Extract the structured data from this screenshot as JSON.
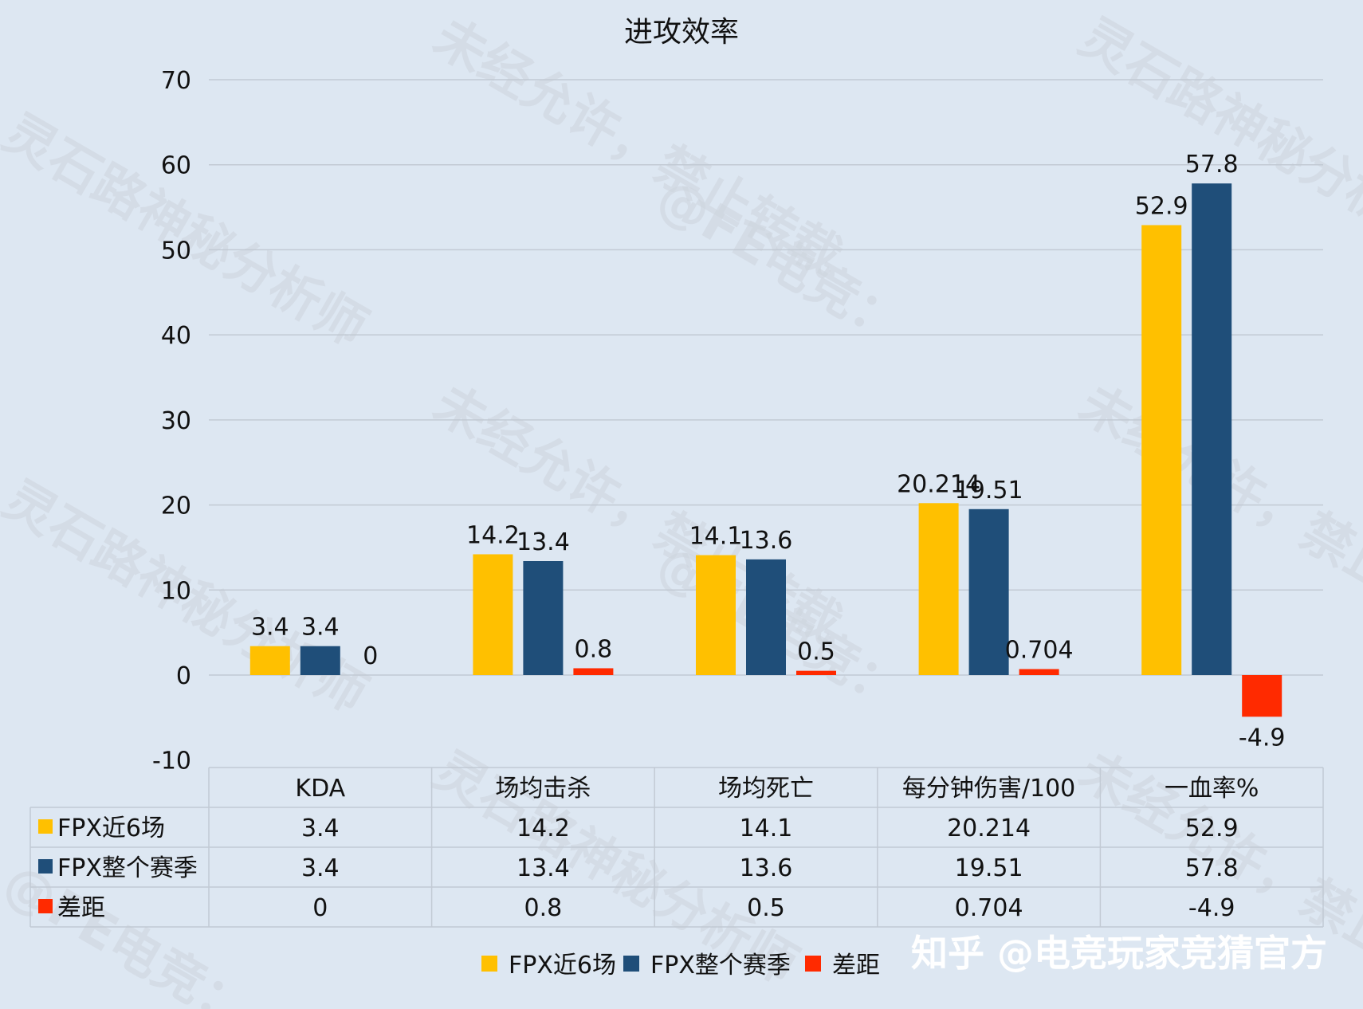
{
  "chart_data": {
    "type": "bar",
    "title": "进攻效率",
    "categories": [
      "KDA",
      "场均击杀",
      "场均死亡",
      "每分钟伤害/100",
      "一血率%"
    ],
    "series": [
      {
        "name": "FPX近6场",
        "color": "#ffc000",
        "values": [
          3.4,
          14.2,
          14.1,
          20.214,
          52.9
        ],
        "labels": [
          "3.4",
          "14.2",
          "14.1",
          "20.214",
          "52.9"
        ]
      },
      {
        "name": "FPX整个赛季",
        "color": "#1f4e79",
        "values": [
          3.4,
          13.4,
          13.6,
          19.51,
          57.8
        ],
        "labels": [
          "3.4",
          "13.4",
          "13.6",
          "19.51",
          "57.8"
        ]
      },
      {
        "name": "差距",
        "color": "#ff2a00",
        "values": [
          0,
          0.8,
          0.5,
          0.704,
          -4.9
        ],
        "labels": [
          "0",
          "0.8",
          "0.5",
          "0.704",
          "-4.9"
        ]
      }
    ],
    "ylim": [
      -10,
      70
    ],
    "yticks": [
      "70",
      "60",
      "50",
      "40",
      "30",
      "20",
      "10",
      "0",
      "-10"
    ],
    "grid": true,
    "legend": "bottom",
    "data_table": true
  },
  "watermarks": [
    "灵石路神秘分析师",
    "未经允许，禁止转载",
    "@FE电竞："
  ],
  "credit": "知乎 @电竞玩家竞猜官方"
}
